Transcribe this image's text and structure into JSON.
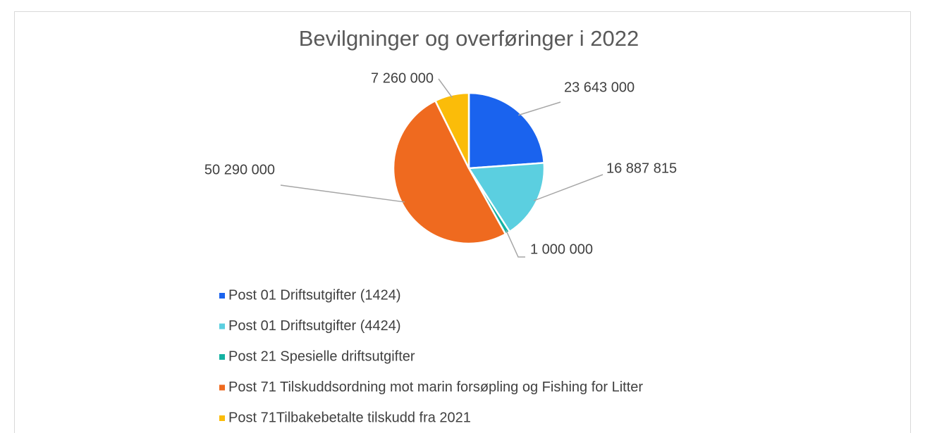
{
  "chart_data": {
    "type": "pie",
    "title": "Bevilgninger og overføringer i 2022",
    "categories": [
      "Post 01 Driftsutgifter (1424)",
      "Post 01 Driftsutgifter (4424)",
      "Post 21 Spesielle driftsutgifter",
      "Post 71 Tilskuddsordning mot marin forsøpling og Fishing for Litter",
      "Post 71Tilbakebetalte tilskudd fra 2021"
    ],
    "values": [
      23643000,
      16887815,
      1000000,
      50290000,
      7260000
    ],
    "value_labels": [
      "23 643 000",
      "16 887 815",
      "1 000 000",
      "50 290 000",
      "7 260 000"
    ],
    "colors": [
      "#1a63ee",
      "#5bcfe0",
      "#14b2a2",
      "#ef6a1f",
      "#fbbc09"
    ],
    "legend": "bottom"
  }
}
